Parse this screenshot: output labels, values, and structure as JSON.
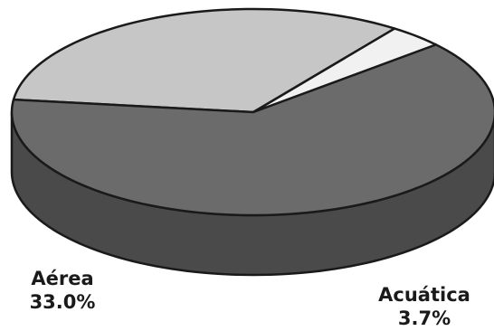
{
  "chart_data": {
    "type": "pie",
    "categories": [
      "Aérea",
      "Acuática",
      ""
    ],
    "values": [
      33.0,
      3.7,
      63.3
    ],
    "value_labels": [
      "33.0%",
      "3.7%",
      ""
    ],
    "colors": {
      "top": [
        "#c6c6c6",
        "#f1f1f1",
        "#6b6b6b"
      ],
      "side": [
        "#a3a3a3",
        "#d2d2d2",
        "#4a4a4a"
      ],
      "outline": "#1a1a1a"
    },
    "style": "3d"
  }
}
